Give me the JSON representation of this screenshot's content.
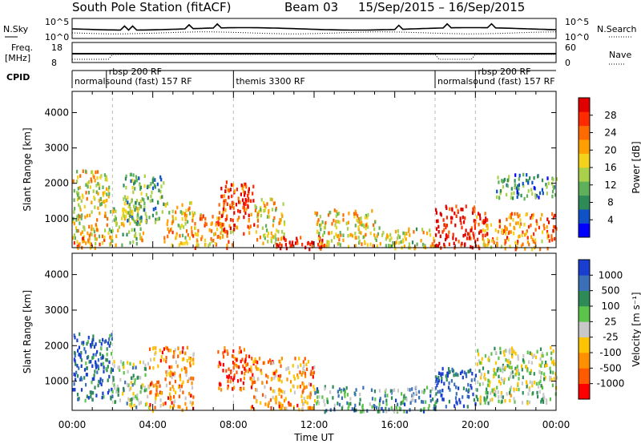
{
  "header": {
    "station": "South Pole Station (fitACF)",
    "beam": "Beam 03",
    "dates": "15/Sep/2015 – 16/Sep/2015"
  },
  "top_panels": {
    "nsky_label": "N.Sky",
    "nsky_ticks": [
      "10^5",
      "10^0"
    ],
    "nsearch_label": "N.Search",
    "nsearch_ticks": [
      "10^5",
      "10^0"
    ],
    "freq_label_line1": "Freq.",
    "freq_label_line2": "[MHz]",
    "freq_ticks": [
      "18",
      "8"
    ],
    "nave_label": "Nave",
    "nave_ticks": [
      "60",
      "0"
    ],
    "cpid_label": "CPID",
    "cpid_segments": [
      {
        "label": "normalsound (fast) 157 RF",
        "start_h": 0.0,
        "end_h": 8.0
      },
      {
        "label": "rbsp 200 RF",
        "start_h": 1.7,
        "end_h": 8.0
      },
      {
        "label": "themis 3300 RF",
        "start_h": 8.0,
        "end_h": 18.0
      },
      {
        "label": "normalsound (fast) 157 RF",
        "start_h": 18.0,
        "end_h": 24.0
      },
      {
        "label": "rbsp 200 RF",
        "start_h": 20.0,
        "end_h": 24.0
      }
    ]
  },
  "chart_data": [
    {
      "type": "heatmap",
      "name": "power",
      "ylabel": "Slant Range [km]",
      "xlim_h": [
        0,
        24
      ],
      "ylim": [
        180,
        4600
      ],
      "y_ticks": [
        1000,
        2000,
        3000,
        4000
      ],
      "colorbar_label": "Power [dB]",
      "colorbar_ticks": [
        4,
        8,
        12,
        16,
        20,
        24,
        28
      ],
      "colors": [
        "#0000ff",
        "#0f52c8",
        "#2e8b57",
        "#5fb05a",
        "#a8d04a",
        "#f2d21a",
        "#ffa000",
        "#ff6a00",
        "#ff2a00",
        "#e00000"
      ],
      "clusters": [
        {
          "start_h": 0.0,
          "end_h": 1.8,
          "r_min": 500,
          "r_max": 2400,
          "level": 0.55
        },
        {
          "start_h": 0.0,
          "end_h": 2.0,
          "r_min": 200,
          "r_max": 600,
          "level": 0.7
        },
        {
          "start_h": 1.8,
          "end_h": 3.5,
          "r_min": 300,
          "r_max": 1500,
          "level": 0.5
        },
        {
          "start_h": 2.5,
          "end_h": 4.5,
          "r_min": 900,
          "r_max": 2300,
          "level": 0.35
        },
        {
          "start_h": 4.5,
          "end_h": 6.0,
          "r_min": 300,
          "r_max": 1500,
          "level": 0.6
        },
        {
          "start_h": 6.0,
          "end_h": 8.0,
          "r_min": 200,
          "r_max": 1200,
          "level": 0.65
        },
        {
          "start_h": 7.2,
          "end_h": 9.0,
          "r_min": 600,
          "r_max": 2100,
          "level": 0.85
        },
        {
          "start_h": 9.0,
          "end_h": 10.5,
          "r_min": 300,
          "r_max": 1600,
          "level": 0.55
        },
        {
          "start_h": 10.0,
          "end_h": 12.5,
          "r_min": 180,
          "r_max": 600,
          "level": 0.95
        },
        {
          "start_h": 12.0,
          "end_h": 15.0,
          "r_min": 250,
          "r_max": 1300,
          "level": 0.55
        },
        {
          "start_h": 15.0,
          "end_h": 18.0,
          "r_min": 200,
          "r_max": 800,
          "level": 0.5
        },
        {
          "start_h": 18.0,
          "end_h": 20.0,
          "r_min": 200,
          "r_max": 1400,
          "level": 0.95
        },
        {
          "start_h": 20.0,
          "end_h": 24.0,
          "r_min": 500,
          "r_max": 1200,
          "level": 0.75
        },
        {
          "start_h": 21.0,
          "end_h": 24.0,
          "r_min": 1600,
          "r_max": 2300,
          "level": 0.3
        },
        {
          "start_h": 20.0,
          "end_h": 24.0,
          "r_min": 180,
          "r_max": 500,
          "level": 0.65
        }
      ]
    },
    {
      "type": "heatmap",
      "name": "velocity",
      "ylabel": "Slant Range [km]",
      "xlabel": "Time UT",
      "xlim_h": [
        0,
        24
      ],
      "ylim": [
        180,
        4600
      ],
      "y_ticks": [
        1000,
        2000,
        3000,
        4000
      ],
      "x_ticks": [
        "00:00",
        "04:00",
        "08:00",
        "12:00",
        "16:00",
        "20:00",
        "00:00"
      ],
      "colorbar_label": "Velocity [m s⁻¹]",
      "colorbar_ticks": [
        -1000,
        -500,
        -100,
        -25,
        25,
        100,
        500,
        1000
      ],
      "colors": [
        "#ff0000",
        "#ff5a00",
        "#ff9000",
        "#ffc400",
        "#c8c8c8",
        "#5cc44a",
        "#2e8b57",
        "#3a70b8",
        "#1a3fd0"
      ],
      "clusters": [
        {
          "start_h": 0.0,
          "end_h": 2.0,
          "r_min": 500,
          "r_max": 2400,
          "level": 0.85
        },
        {
          "start_h": 2.0,
          "end_h": 3.8,
          "r_min": 300,
          "r_max": 1600,
          "level": 0.6
        },
        {
          "start_h": 3.8,
          "end_h": 6.0,
          "r_min": 200,
          "r_max": 2000,
          "level": 0.3
        },
        {
          "start_h": 7.2,
          "end_h": 8.8,
          "r_min": 800,
          "r_max": 2000,
          "level": 0.1
        },
        {
          "start_h": 8.8,
          "end_h": 12.0,
          "r_min": 250,
          "r_max": 1700,
          "level": 0.3
        },
        {
          "start_h": 12.0,
          "end_h": 18.0,
          "r_min": 180,
          "r_max": 900,
          "level": 0.7
        },
        {
          "start_h": 18.0,
          "end_h": 20.0,
          "r_min": 300,
          "r_max": 1400,
          "level": 0.9
        },
        {
          "start_h": 20.0,
          "end_h": 24.0,
          "r_min": 400,
          "r_max": 2000,
          "level": 0.55
        }
      ]
    }
  ]
}
